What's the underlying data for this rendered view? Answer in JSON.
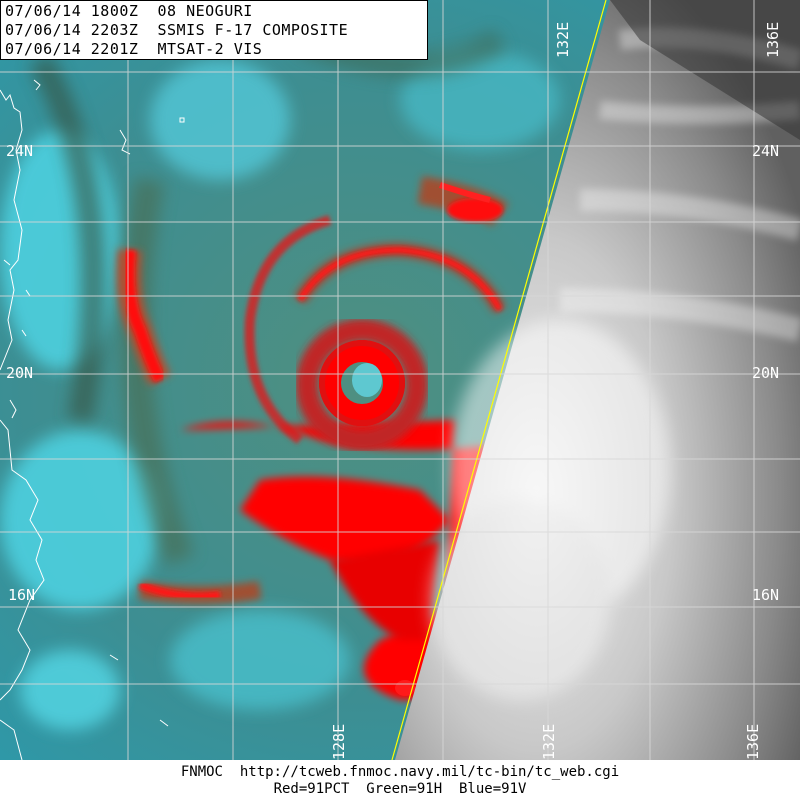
{
  "header": {
    "line1": "07/06/14 1800Z  08 NEOGURI",
    "line2": "07/06/14 2203Z  SSMIS F-17 COMPOSITE",
    "line3": "07/06/14 2201Z  MTSAT-2 VIS"
  },
  "grid": {
    "lat_labels": [
      "24N",
      "20N",
      "16N"
    ],
    "lon_labels": [
      "128E",
      "132E",
      "136E"
    ]
  },
  "footer": {
    "line1": "FNMOC  http://tcweb.fnmoc.navy.mil/tc-bin/tc_web.cgi",
    "line2": "Red=91PCT  Green=91H  Blue=91V"
  },
  "colors": {
    "microwave_background": "#3f8f8f",
    "convection": "#ff0000",
    "coastline": "#ffffff",
    "grid": "#dddddd",
    "swath_edge": "#ffff00",
    "visible_cloud": "#d8d8d8"
  },
  "icons": [
    "storm-eye-icon",
    "coastline-outline"
  ]
}
